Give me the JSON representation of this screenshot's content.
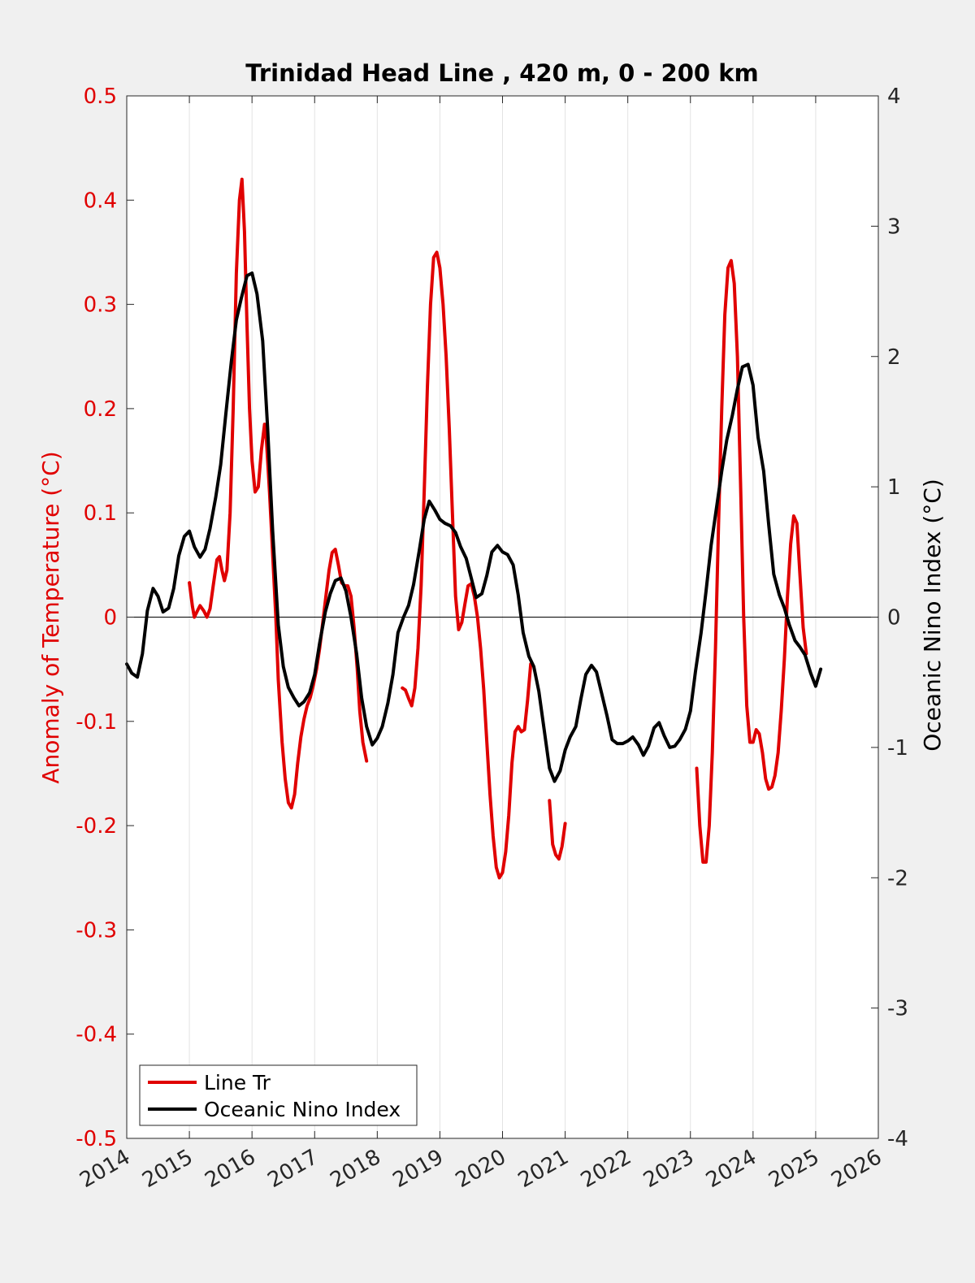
{
  "chart_data": {
    "type": "line",
    "title": "Trinidad Head Line , 420 m, 0 - 200 km",
    "ylabel_left": "Anomaly of Temperature (°C)",
    "ylabel_right": "Oceanic Nino Index (°C)",
    "xlabel": "",
    "xlim": [
      2014,
      2026
    ],
    "ylim_left": [
      -0.5,
      0.5
    ],
    "ylim_right": [
      -4,
      4
    ],
    "x_ticks": [
      "2014",
      "2015",
      "2016",
      "2017",
      "2018",
      "2019",
      "2020",
      "2021",
      "2022",
      "2023",
      "2024",
      "2025",
      "2026"
    ],
    "y_left_ticks": [
      "-0.5",
      "-0.4",
      "-0.3",
      "-0.2",
      "-0.1",
      "0",
      "0.1",
      "0.2",
      "0.3",
      "0.4",
      "0.5"
    ],
    "y_right_ticks": [
      "-4",
      "-3",
      "-2",
      "-1",
      "0",
      "1",
      "2",
      "3",
      "4"
    ],
    "grid": "vertical",
    "zero_line": true,
    "legend_position": "bottom-left",
    "colors": {
      "left_axis": "#e00000",
      "line_tr": "#e00000",
      "oni": "#000000",
      "plot_bg": "#ffffff",
      "figure_bg": "#f0f0f0"
    },
    "series": [
      {
        "name": "Line Tr",
        "axis": "left",
        "color": "#e00000",
        "segments": [
          [
            [
              2015.0,
              0.033
            ],
            [
              2015.05,
              0.01
            ],
            [
              2015.08,
              0.0
            ],
            [
              2015.12,
              0.005
            ],
            [
              2015.17,
              0.011
            ],
            [
              2015.23,
              0.006
            ],
            [
              2015.28,
              0.0
            ],
            [
              2015.33,
              0.008
            ],
            [
              2015.38,
              0.03
            ],
            [
              2015.44,
              0.055
            ],
            [
              2015.48,
              0.058
            ],
            [
              2015.52,
              0.045
            ],
            [
              2015.56,
              0.035
            ],
            [
              2015.6,
              0.045
            ],
            [
              2015.65,
              0.1
            ],
            [
              2015.7,
              0.2
            ],
            [
              2015.75,
              0.33
            ],
            [
              2015.8,
              0.4
            ],
            [
              2015.84,
              0.42
            ],
            [
              2015.88,
              0.37
            ],
            [
              2015.92,
              0.28
            ],
            [
              2015.96,
              0.2
            ],
            [
              2016.0,
              0.15
            ],
            [
              2016.05,
              0.12
            ],
            [
              2016.1,
              0.125
            ],
            [
              2016.15,
              0.16
            ],
            [
              2016.2,
              0.185
            ],
            [
              2016.23,
              0.17
            ],
            [
              2016.28,
              0.12
            ],
            [
              2016.33,
              0.06
            ],
            [
              2016.38,
              0.0
            ],
            [
              2016.42,
              -0.06
            ],
            [
              2016.48,
              -0.12
            ],
            [
              2016.53,
              -0.155
            ],
            [
              2016.58,
              -0.178
            ],
            [
              2016.63,
              -0.183
            ],
            [
              2016.68,
              -0.17
            ],
            [
              2016.73,
              -0.14
            ],
            [
              2016.78,
              -0.115
            ],
            [
              2016.83,
              -0.098
            ],
            [
              2016.88,
              -0.085
            ],
            [
              2016.93,
              -0.077
            ],
            [
              2016.98,
              -0.065
            ],
            [
              2017.03,
              -0.05
            ],
            [
              2017.08,
              -0.03
            ],
            [
              2017.13,
              -0.005
            ],
            [
              2017.18,
              0.02
            ],
            [
              2017.23,
              0.045
            ],
            [
              2017.28,
              0.062
            ],
            [
              2017.33,
              0.065
            ],
            [
              2017.38,
              0.05
            ],
            [
              2017.43,
              0.033
            ],
            [
              2017.48,
              0.03
            ],
            [
              2017.53,
              0.03
            ],
            [
              2017.58,
              0.02
            ],
            [
              2017.63,
              -0.01
            ],
            [
              2017.68,
              -0.05
            ],
            [
              2017.72,
              -0.09
            ],
            [
              2017.77,
              -0.12
            ],
            [
              2017.83,
              -0.138
            ]
          ],
          [
            [
              2018.4,
              -0.068
            ],
            [
              2018.45,
              -0.07
            ],
            [
              2018.5,
              -0.078
            ],
            [
              2018.55,
              -0.085
            ],
            [
              2018.6,
              -0.068
            ],
            [
              2018.65,
              -0.03
            ],
            [
              2018.7,
              0.03
            ],
            [
              2018.75,
              0.12
            ],
            [
              2018.8,
              0.22
            ],
            [
              2018.85,
              0.3
            ],
            [
              2018.9,
              0.345
            ],
            [
              2018.95,
              0.35
            ],
            [
              2019.0,
              0.335
            ],
            [
              2019.05,
              0.3
            ],
            [
              2019.1,
              0.25
            ],
            [
              2019.15,
              0.18
            ],
            [
              2019.2,
              0.1
            ],
            [
              2019.25,
              0.02
            ],
            [
              2019.3,
              -0.012
            ],
            [
              2019.35,
              -0.005
            ],
            [
              2019.4,
              0.013
            ],
            [
              2019.45,
              0.03
            ],
            [
              2019.5,
              0.032
            ],
            [
              2019.55,
              0.02
            ],
            [
              2019.6,
              0.0
            ],
            [
              2019.65,
              -0.03
            ],
            [
              2019.7,
              -0.07
            ],
            [
              2019.75,
              -0.12
            ],
            [
              2019.8,
              -0.17
            ],
            [
              2019.85,
              -0.21
            ],
            [
              2019.9,
              -0.24
            ],
            [
              2019.95,
              -0.25
            ],
            [
              2020.0,
              -0.245
            ],
            [
              2020.05,
              -0.225
            ],
            [
              2020.1,
              -0.19
            ],
            [
              2020.15,
              -0.14
            ],
            [
              2020.2,
              -0.11
            ],
            [
              2020.25,
              -0.105
            ],
            [
              2020.3,
              -0.11
            ],
            [
              2020.35,
              -0.108
            ],
            [
              2020.4,
              -0.08
            ],
            [
              2020.45,
              -0.045
            ]
          ],
          [
            [
              2020.75,
              -0.176
            ],
            [
              2020.8,
              -0.218
            ],
            [
              2020.85,
              -0.228
            ],
            [
              2020.9,
              -0.232
            ],
            [
              2020.95,
              -0.22
            ],
            [
              2021.0,
              -0.198
            ]
          ],
          [
            [
              2023.1,
              -0.145
            ],
            [
              2023.15,
              -0.2
            ],
            [
              2023.2,
              -0.235
            ],
            [
              2023.25,
              -0.235
            ],
            [
              2023.3,
              -0.2
            ],
            [
              2023.35,
              -0.13
            ],
            [
              2023.4,
              -0.03
            ],
            [
              2023.45,
              0.09
            ],
            [
              2023.5,
              0.2
            ],
            [
              2023.55,
              0.29
            ],
            [
              2023.6,
              0.335
            ],
            [
              2023.65,
              0.342
            ],
            [
              2023.7,
              0.32
            ],
            [
              2023.75,
              0.25
            ],
            [
              2023.8,
              0.13
            ],
            [
              2023.85,
              0.0
            ],
            [
              2023.9,
              -0.085
            ],
            [
              2023.95,
              -0.12
            ],
            [
              2024.0,
              -0.12
            ],
            [
              2024.05,
              -0.108
            ],
            [
              2024.1,
              -0.112
            ],
            [
              2024.15,
              -0.13
            ],
            [
              2024.2,
              -0.155
            ],
            [
              2024.25,
              -0.165
            ],
            [
              2024.3,
              -0.163
            ],
            [
              2024.35,
              -0.152
            ],
            [
              2024.4,
              -0.13
            ],
            [
              2024.45,
              -0.09
            ],
            [
              2024.5,
              -0.04
            ],
            [
              2024.55,
              0.02
            ],
            [
              2024.6,
              0.07
            ],
            [
              2024.65,
              0.097
            ],
            [
              2024.7,
              0.09
            ],
            [
              2024.75,
              0.04
            ],
            [
              2024.8,
              -0.01
            ],
            [
              2024.85,
              -0.035
            ]
          ]
        ]
      },
      {
        "name": "Oceanic Nino Index",
        "axis": "right",
        "color": "#000000",
        "x": [
          2014.0,
          2014.08,
          2014.17,
          2014.25,
          2014.33,
          2014.42,
          2014.5,
          2014.58,
          2014.67,
          2014.75,
          2014.83,
          2014.92,
          2015.0,
          2015.08,
          2015.17,
          2015.25,
          2015.33,
          2015.42,
          2015.5,
          2015.58,
          2015.67,
          2015.75,
          2015.83,
          2015.92,
          2016.0,
          2016.08,
          2016.17,
          2016.25,
          2016.33,
          2016.42,
          2016.5,
          2016.58,
          2016.67,
          2016.75,
          2016.83,
          2016.92,
          2017.0,
          2017.08,
          2017.17,
          2017.25,
          2017.33,
          2017.42,
          2017.5,
          2017.58,
          2017.67,
          2017.75,
          2017.83,
          2017.92,
          2018.0,
          2018.08,
          2018.17,
          2018.25,
          2018.33,
          2018.42,
          2018.5,
          2018.58,
          2018.67,
          2018.75,
          2018.83,
          2018.92,
          2019.0,
          2019.08,
          2019.17,
          2019.25,
          2019.33,
          2019.42,
          2019.5,
          2019.58,
          2019.67,
          2019.75,
          2019.83,
          2019.92,
          2020.0,
          2020.08,
          2020.17,
          2020.25,
          2020.33,
          2020.42,
          2020.5,
          2020.58,
          2020.67,
          2020.75,
          2020.83,
          2020.92,
          2021.0,
          2021.08,
          2021.17,
          2021.25,
          2021.33,
          2021.42,
          2021.5,
          2021.58,
          2021.67,
          2021.75,
          2021.83,
          2021.92,
          2022.0,
          2022.08,
          2022.17,
          2022.25,
          2022.33,
          2022.42,
          2022.5,
          2022.58,
          2022.67,
          2022.75,
          2022.83,
          2022.92,
          2023.0,
          2023.08,
          2023.17,
          2023.25,
          2023.33,
          2023.42,
          2023.5,
          2023.58,
          2023.67,
          2023.75,
          2023.83,
          2023.92,
          2024.0,
          2024.08,
          2024.17,
          2024.25,
          2024.33,
          2024.42,
          2024.5,
          2024.58,
          2024.67,
          2024.75,
          2024.83,
          2024.92,
          2025.0,
          2025.08
        ],
        "values": [
          -0.36,
          -0.43,
          -0.46,
          -0.28,
          0.05,
          0.22,
          0.16,
          0.04,
          0.07,
          0.22,
          0.47,
          0.62,
          0.66,
          0.54,
          0.46,
          0.52,
          0.68,
          0.92,
          1.17,
          1.55,
          1.96,
          2.28,
          2.45,
          2.62,
          2.64,
          2.48,
          2.12,
          1.45,
          0.66,
          -0.06,
          -0.38,
          -0.54,
          -0.62,
          -0.68,
          -0.65,
          -0.58,
          -0.44,
          -0.2,
          0.04,
          0.18,
          0.28,
          0.3,
          0.2,
          0.0,
          -0.28,
          -0.62,
          -0.84,
          -0.98,
          -0.93,
          -0.84,
          -0.66,
          -0.44,
          -0.12,
          0.0,
          0.09,
          0.25,
          0.51,
          0.75,
          0.89,
          0.82,
          0.75,
          0.72,
          0.7,
          0.65,
          0.54,
          0.45,
          0.3,
          0.15,
          0.18,
          0.32,
          0.5,
          0.55,
          0.5,
          0.48,
          0.4,
          0.17,
          -0.12,
          -0.3,
          -0.38,
          -0.57,
          -0.88,
          -1.16,
          -1.26,
          -1.18,
          -1.02,
          -0.92,
          -0.84,
          -0.63,
          -0.44,
          -0.37,
          -0.42,
          -0.58,
          -0.76,
          -0.94,
          -0.97,
          -0.97,
          -0.95,
          -0.92,
          -0.98,
          -1.06,
          -0.99,
          -0.85,
          -0.81,
          -0.91,
          -1.0,
          -0.99,
          -0.94,
          -0.86,
          -0.72,
          -0.42,
          -0.12,
          0.2,
          0.55,
          0.85,
          1.12,
          1.36,
          1.55,
          1.75,
          1.92,
          1.94,
          1.78,
          1.38,
          1.12,
          0.71,
          0.33,
          0.17,
          0.07,
          -0.06,
          -0.18,
          -0.23,
          -0.29,
          -0.43,
          -0.53,
          -0.4
        ]
      }
    ]
  }
}
